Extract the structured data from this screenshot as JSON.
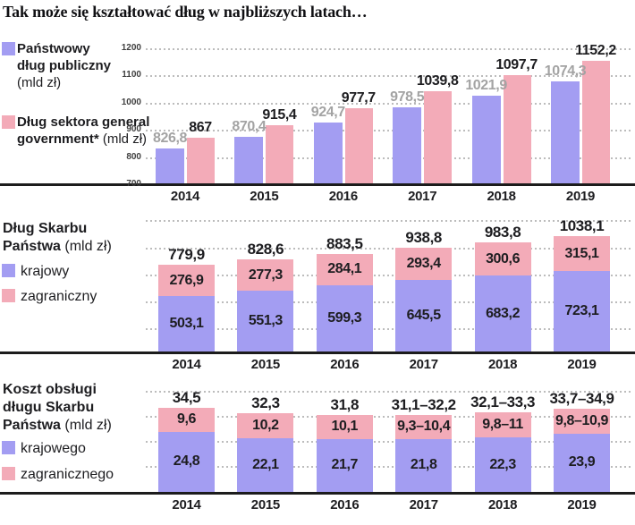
{
  "title": "Tak może się kształtować dług w najbliższych latach…",
  "colors": {
    "bar_blue": "#a39df2",
    "bar_pink": "#f3abb8",
    "muted_value_label": "#a3a3a3",
    "dark_text": "#1d1d20",
    "gridline": "#bcbcbc",
    "axis_line": "#1c1c1c"
  },
  "years": [
    "2014",
    "2015",
    "2016",
    "2017",
    "2018",
    "2019"
  ],
  "chart_data": [
    {
      "type": "bar",
      "title": "Państwowy dług publiczny i dług sektora general government",
      "unit": "(mld zł)",
      "categories": [
        "2014",
        "2015",
        "2016",
        "2017",
        "2018",
        "2019"
      ],
      "series": [
        {
          "name": "Państwowy dług publiczny",
          "unit": "(mld zł)",
          "values": [
            826.8,
            870.4,
            924.7,
            978.5,
            1021.9,
            1074.3
          ],
          "labels": [
            "826,8",
            "870,4",
            "924,7",
            "978,5",
            "1021,9",
            "1074,3"
          ]
        },
        {
          "name": "Dług sektora general government*",
          "unit": "(mld zł)",
          "values": [
            867,
            915.4,
            977.7,
            1039.8,
            1097.7,
            1152.2
          ],
          "labels": [
            "867",
            "915,4",
            "977,7",
            "1039,8",
            "1097,7",
            "1152,2"
          ]
        }
      ],
      "ylim": [
        700,
        1200
      ],
      "yticks": [
        "1200",
        "1100",
        "1000",
        "900",
        "800",
        "700"
      ],
      "grid": true,
      "legend_position": "left"
    },
    {
      "type": "stacked-bar",
      "title": "Dług Skarbu Państwa",
      "unit": "(mld zł)",
      "categories": [
        "2014",
        "2015",
        "2016",
        "2017",
        "2018",
        "2019"
      ],
      "series": [
        {
          "name": "krajowy",
          "values": [
            503.1,
            551.3,
            599.3,
            645.5,
            683.2,
            723.1
          ],
          "labels": [
            "503,1",
            "551,3",
            "599,3",
            "645,5",
            "683,2",
            "723,1"
          ]
        },
        {
          "name": "zagraniczny",
          "values": [
            276.9,
            277.3,
            284.1,
            293.4,
            300.6,
            315.1
          ],
          "labels": [
            "276,9",
            "277,3",
            "284,1",
            "293,4",
            "300,6",
            "315,1"
          ]
        }
      ],
      "totals_values": [
        779.9,
        828.6,
        883.5,
        938.8,
        983.8,
        1038.1
      ],
      "totals_labels": [
        "779,9",
        "828,6",
        "883,5",
        "938,8",
        "983,8",
        "1038,1"
      ],
      "grid": true,
      "legend_position": "left"
    },
    {
      "type": "stacked-bar",
      "title": "Koszt obsługi długu Skarbu Państwa",
      "unit": "(mld zł)",
      "categories": [
        "2014",
        "2015",
        "2016",
        "2017",
        "2018",
        "2019"
      ],
      "series": [
        {
          "name": "krajowego",
          "values": [
            24.8,
            22.1,
            21.7,
            21.8,
            22.3,
            23.9
          ],
          "labels": [
            "24,8",
            "22,1",
            "21,7",
            "21,8",
            "22,3",
            "23,9"
          ]
        },
        {
          "name": "zagranicznego",
          "values": [
            9.6,
            10.2,
            10.1,
            9.85,
            10.4,
            10.35
          ],
          "labels": [
            "9,6",
            "10,2",
            "10,1",
            "9,3–10,4",
            "9,8–11",
            "9,8–10,9"
          ]
        }
      ],
      "totals_values": [
        34.5,
        32.3,
        31.8,
        [
          31.1,
          32.2
        ],
        [
          32.1,
          33.3
        ],
        [
          33.7,
          34.9
        ]
      ],
      "totals_labels": [
        "34,5",
        "32,3",
        "31,8",
        "31,1–32,2",
        "32,1–33,3",
        "33,7–34,9"
      ],
      "grid": true,
      "legend_position": "left"
    }
  ]
}
